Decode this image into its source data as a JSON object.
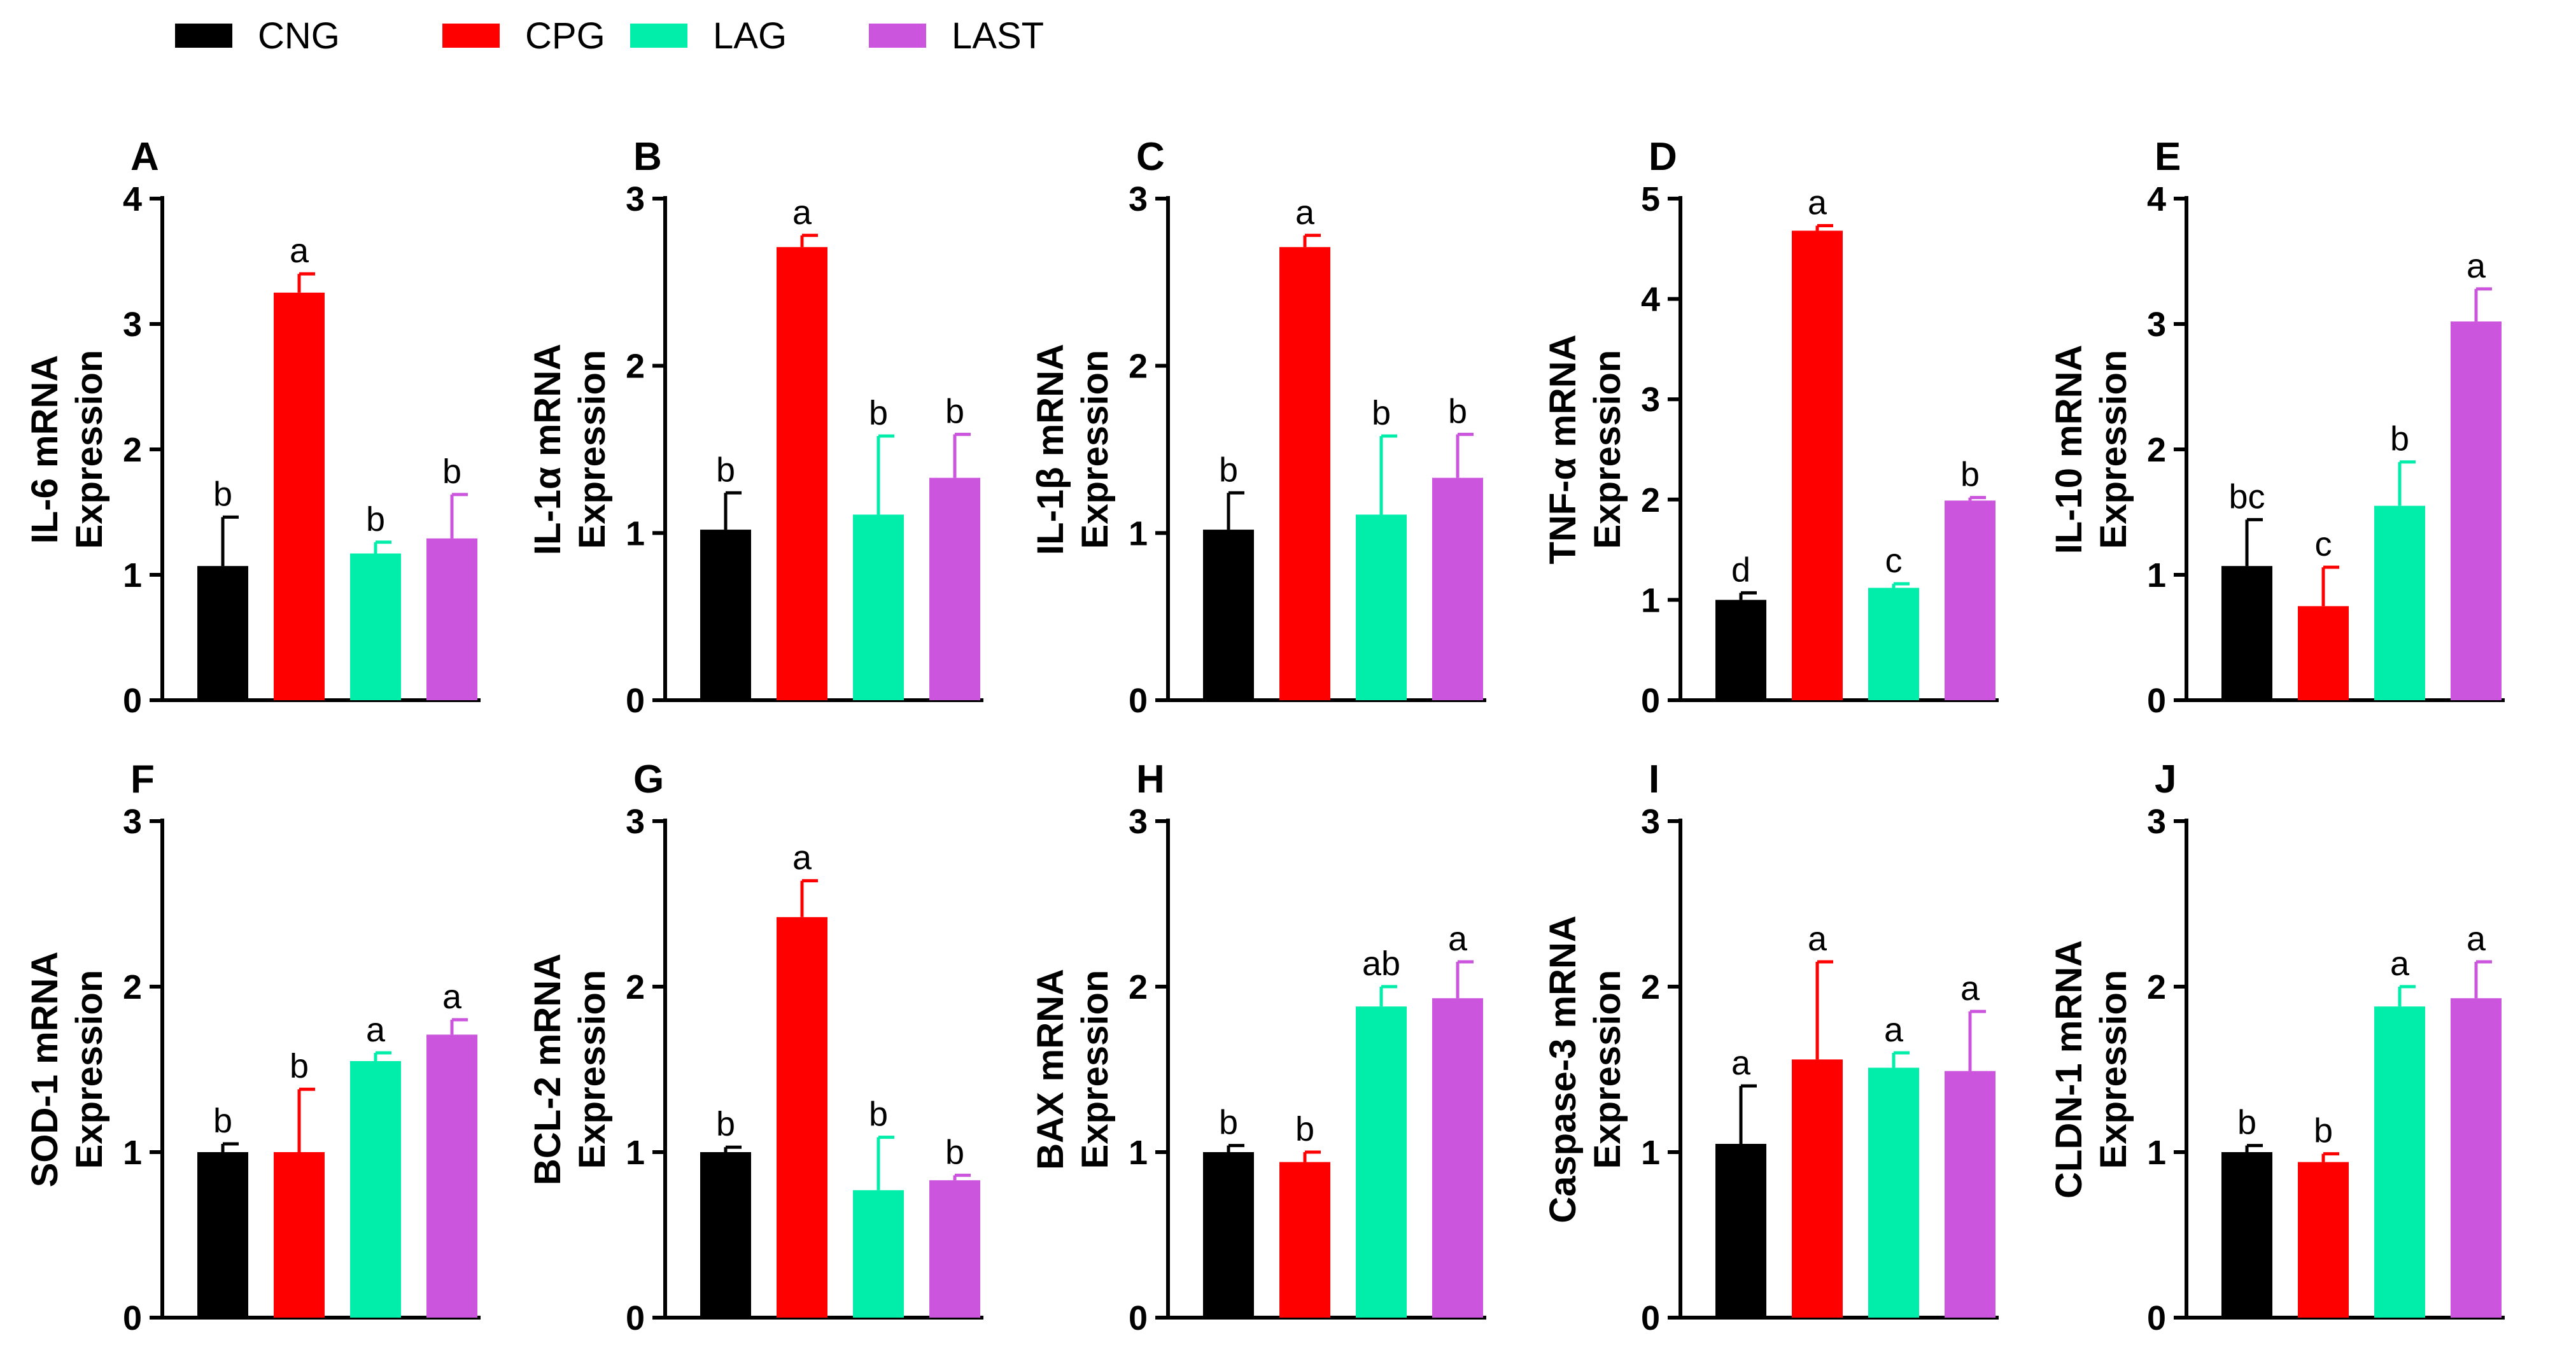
{
  "chart_data": {
    "type": "bar",
    "legend": {
      "placement": "top-left",
      "entries": [
        {
          "name": "CNG",
          "color": "#000000"
        },
        {
          "name": "CPG",
          "color": "#ff0000"
        },
        {
          "name": "LAG",
          "color": "#00eeaa"
        },
        {
          "name": "LAST",
          "color": "#cc55dd"
        }
      ]
    },
    "grid": false,
    "panels": [
      {
        "letter": "A",
        "ylabel": [
          "IL-6 mRNA",
          "Expression"
        ],
        "ylim": [
          0,
          4
        ],
        "yticks": [
          "0",
          "1",
          "2",
          "3",
          "4"
        ],
        "values": [
          1.07,
          3.25,
          1.17,
          1.29
        ],
        "errors": [
          0.39,
          0.15,
          0.09,
          0.35
        ],
        "labels": [
          "b",
          "a",
          "b",
          "b"
        ]
      },
      {
        "letter": "B",
        "ylabel": [
          "IL-1α mRNA",
          "Expression"
        ],
        "ylim": [
          0,
          3
        ],
        "yticks": [
          "0",
          "1",
          "2",
          "3"
        ],
        "values": [
          1.02,
          2.71,
          1.11,
          1.33
        ],
        "errors": [
          0.22,
          0.07,
          0.47,
          0.26
        ],
        "labels": [
          "b",
          "a",
          "b",
          "b"
        ]
      },
      {
        "letter": "C",
        "ylabel": [
          "IL-1β mRNA",
          "Expression"
        ],
        "ylim": [
          0,
          3
        ],
        "yticks": [
          "0",
          "1",
          "2",
          "3"
        ],
        "values": [
          1.02,
          2.71,
          1.11,
          1.33
        ],
        "errors": [
          0.22,
          0.07,
          0.47,
          0.26
        ],
        "labels": [
          "b",
          "a",
          "b",
          "b"
        ]
      },
      {
        "letter": "D",
        "ylabel": [
          "TNF-α mRNA",
          "Expression"
        ],
        "ylim": [
          0,
          5
        ],
        "yticks": [
          "0",
          "1",
          "2",
          "3",
          "4",
          "5"
        ],
        "values": [
          1.0,
          4.68,
          1.12,
          1.99
        ],
        "errors": [
          0.07,
          0.05,
          0.04,
          0.03
        ],
        "labels": [
          "d",
          "a",
          "c",
          "b"
        ]
      },
      {
        "letter": "E",
        "ylabel": [
          "IL-10 mRNA",
          "Expression"
        ],
        "ylim": [
          0,
          4
        ],
        "yticks": [
          "0",
          "1",
          "2",
          "3",
          "4"
        ],
        "values": [
          1.07,
          0.75,
          1.55,
          3.02
        ],
        "errors": [
          0.37,
          0.31,
          0.35,
          0.26
        ],
        "labels": [
          "bc",
          "c",
          "b",
          "a"
        ]
      },
      {
        "letter": "F",
        "ylabel": [
          "SOD-1 mRNA",
          "Expression"
        ],
        "ylim": [
          0,
          3
        ],
        "yticks": [
          "0",
          "1",
          "2",
          "3"
        ],
        "values": [
          1.0,
          1.0,
          1.55,
          1.71
        ],
        "errors": [
          0.05,
          0.38,
          0.05,
          0.09
        ],
        "labels": [
          "b",
          "b",
          "a",
          "a"
        ]
      },
      {
        "letter": "G",
        "ylabel": [
          "BCL-2 mRNA",
          "Expression"
        ],
        "ylim": [
          0,
          3
        ],
        "yticks": [
          "0",
          "1",
          "2",
          "3"
        ],
        "values": [
          1.0,
          2.42,
          0.77,
          0.83
        ],
        "errors": [
          0.03,
          0.22,
          0.32,
          0.03
        ],
        "labels": [
          "b",
          "a",
          "b",
          "b"
        ]
      },
      {
        "letter": "H",
        "ylabel": [
          "BAX mRNA",
          "Expression"
        ],
        "ylim": [
          0,
          3
        ],
        "yticks": [
          "0",
          "1",
          "2",
          "3"
        ],
        "values": [
          1.0,
          0.94,
          1.88,
          1.93
        ],
        "errors": [
          0.04,
          0.06,
          0.12,
          0.22
        ],
        "labels": [
          "b",
          "b",
          "ab",
          "a"
        ]
      },
      {
        "letter": "I",
        "ylabel": [
          "Caspase-3 mRNA",
          "Expression"
        ],
        "ylim": [
          0,
          3
        ],
        "yticks": [
          "0",
          "1",
          "2",
          "3"
        ],
        "values": [
          1.05,
          1.56,
          1.51,
          1.49
        ],
        "errors": [
          0.35,
          0.59,
          0.09,
          0.36
        ],
        "labels": [
          "a",
          "a",
          "a",
          "a"
        ]
      },
      {
        "letter": "J",
        "ylabel": [
          "CLDN-1 mRNA",
          "Expression"
        ],
        "ylim": [
          0,
          3
        ],
        "yticks": [
          "0",
          "1",
          "2",
          "3"
        ],
        "values": [
          1.0,
          0.94,
          1.88,
          1.93
        ],
        "errors": [
          0.04,
          0.05,
          0.12,
          0.22
        ],
        "labels": [
          "b",
          "b",
          "a",
          "a"
        ]
      }
    ]
  }
}
